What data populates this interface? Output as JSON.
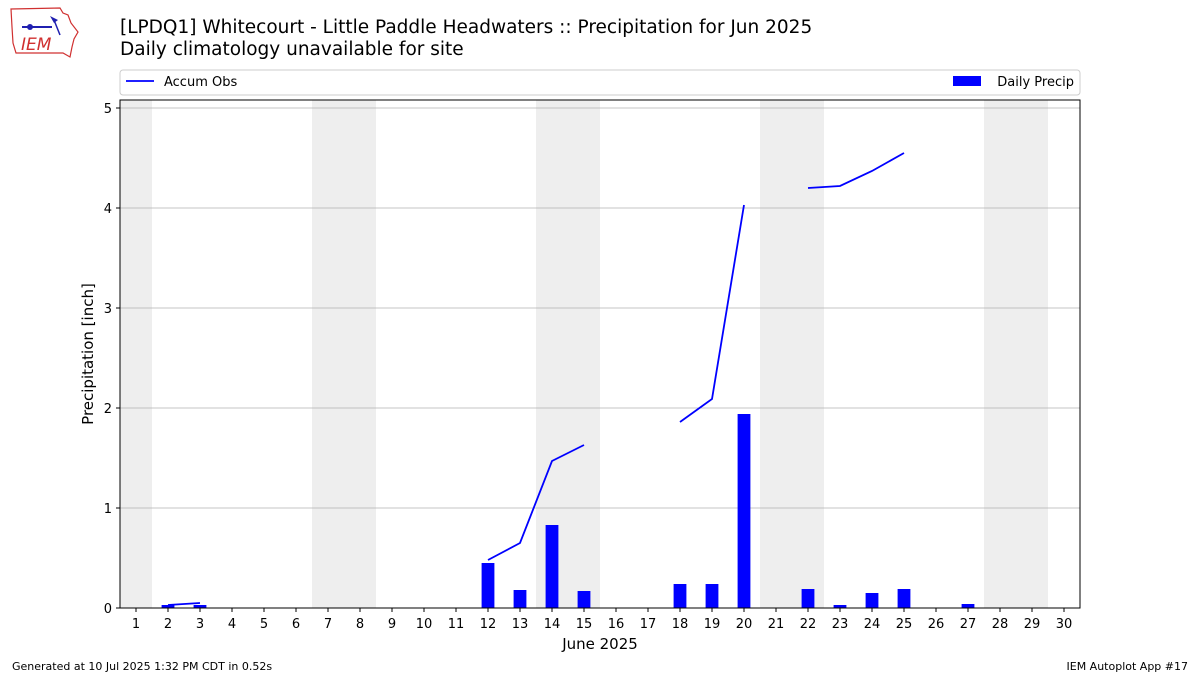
{
  "logo": {
    "text": "IEM"
  },
  "title": {
    "line1": "[LPDQ1] Whitecourt - Little Paddle Headwaters :: Precipitation for Jun 2025",
    "line2": "Daily climatology unavailable for site"
  },
  "footer": {
    "left": "Generated at 10 Jul 2025 1:32 PM CDT in 0.52s",
    "right": "IEM Autoplot App #17"
  },
  "colors": {
    "bar": "#0000ff",
    "line": "#0000ff",
    "weekend": "#eeeeee",
    "grid": "#b0b0b0"
  },
  "chart_data": {
    "type": "bar",
    "xlabel": "June 2025",
    "ylabel": "Precipitation [inch]",
    "xlim": [
      0.5,
      30.5
    ],
    "ylim": [
      0,
      5.08
    ],
    "yticks": [
      0,
      1,
      2,
      3,
      4,
      5
    ],
    "categories": [
      "1",
      "2",
      "3",
      "4",
      "5",
      "6",
      "7",
      "8",
      "9",
      "10",
      "11",
      "12",
      "13",
      "14",
      "15",
      "16",
      "17",
      "18",
      "19",
      "20",
      "21",
      "22",
      "23",
      "24",
      "25",
      "26",
      "27",
      "28",
      "29",
      "30"
    ],
    "grid": "y",
    "legend": "top",
    "shaded_days": [
      1,
      7,
      8,
      14,
      15,
      21,
      22,
      28,
      29
    ],
    "series": [
      {
        "name": "Daily Precip",
        "type": "bar",
        "values": [
          0,
          0.03,
          0.03,
          0,
          0,
          0,
          0,
          0,
          0,
          0,
          0,
          0.45,
          0.18,
          0.83,
          0.17,
          0,
          0,
          0.24,
          0.24,
          1.94,
          0,
          0.19,
          0.03,
          0.15,
          0.19,
          0,
          0.04,
          0,
          0,
          0
        ]
      },
      {
        "name": "Accum Obs",
        "type": "line",
        "segments": [
          [
            [
              2,
              0.03
            ],
            [
              3,
              0.05
            ]
          ],
          [
            [
              12,
              0.48
            ],
            [
              13,
              0.65
            ],
            [
              14,
              1.47
            ],
            [
              15,
              1.63
            ]
          ],
          [
            [
              18,
              1.86
            ],
            [
              19,
              2.09
            ],
            [
              20,
              4.03
            ]
          ],
          [
            [
              22,
              4.2
            ],
            [
              23,
              4.22
            ],
            [
              24,
              4.37
            ],
            [
              25,
              4.55
            ]
          ]
        ]
      }
    ]
  }
}
